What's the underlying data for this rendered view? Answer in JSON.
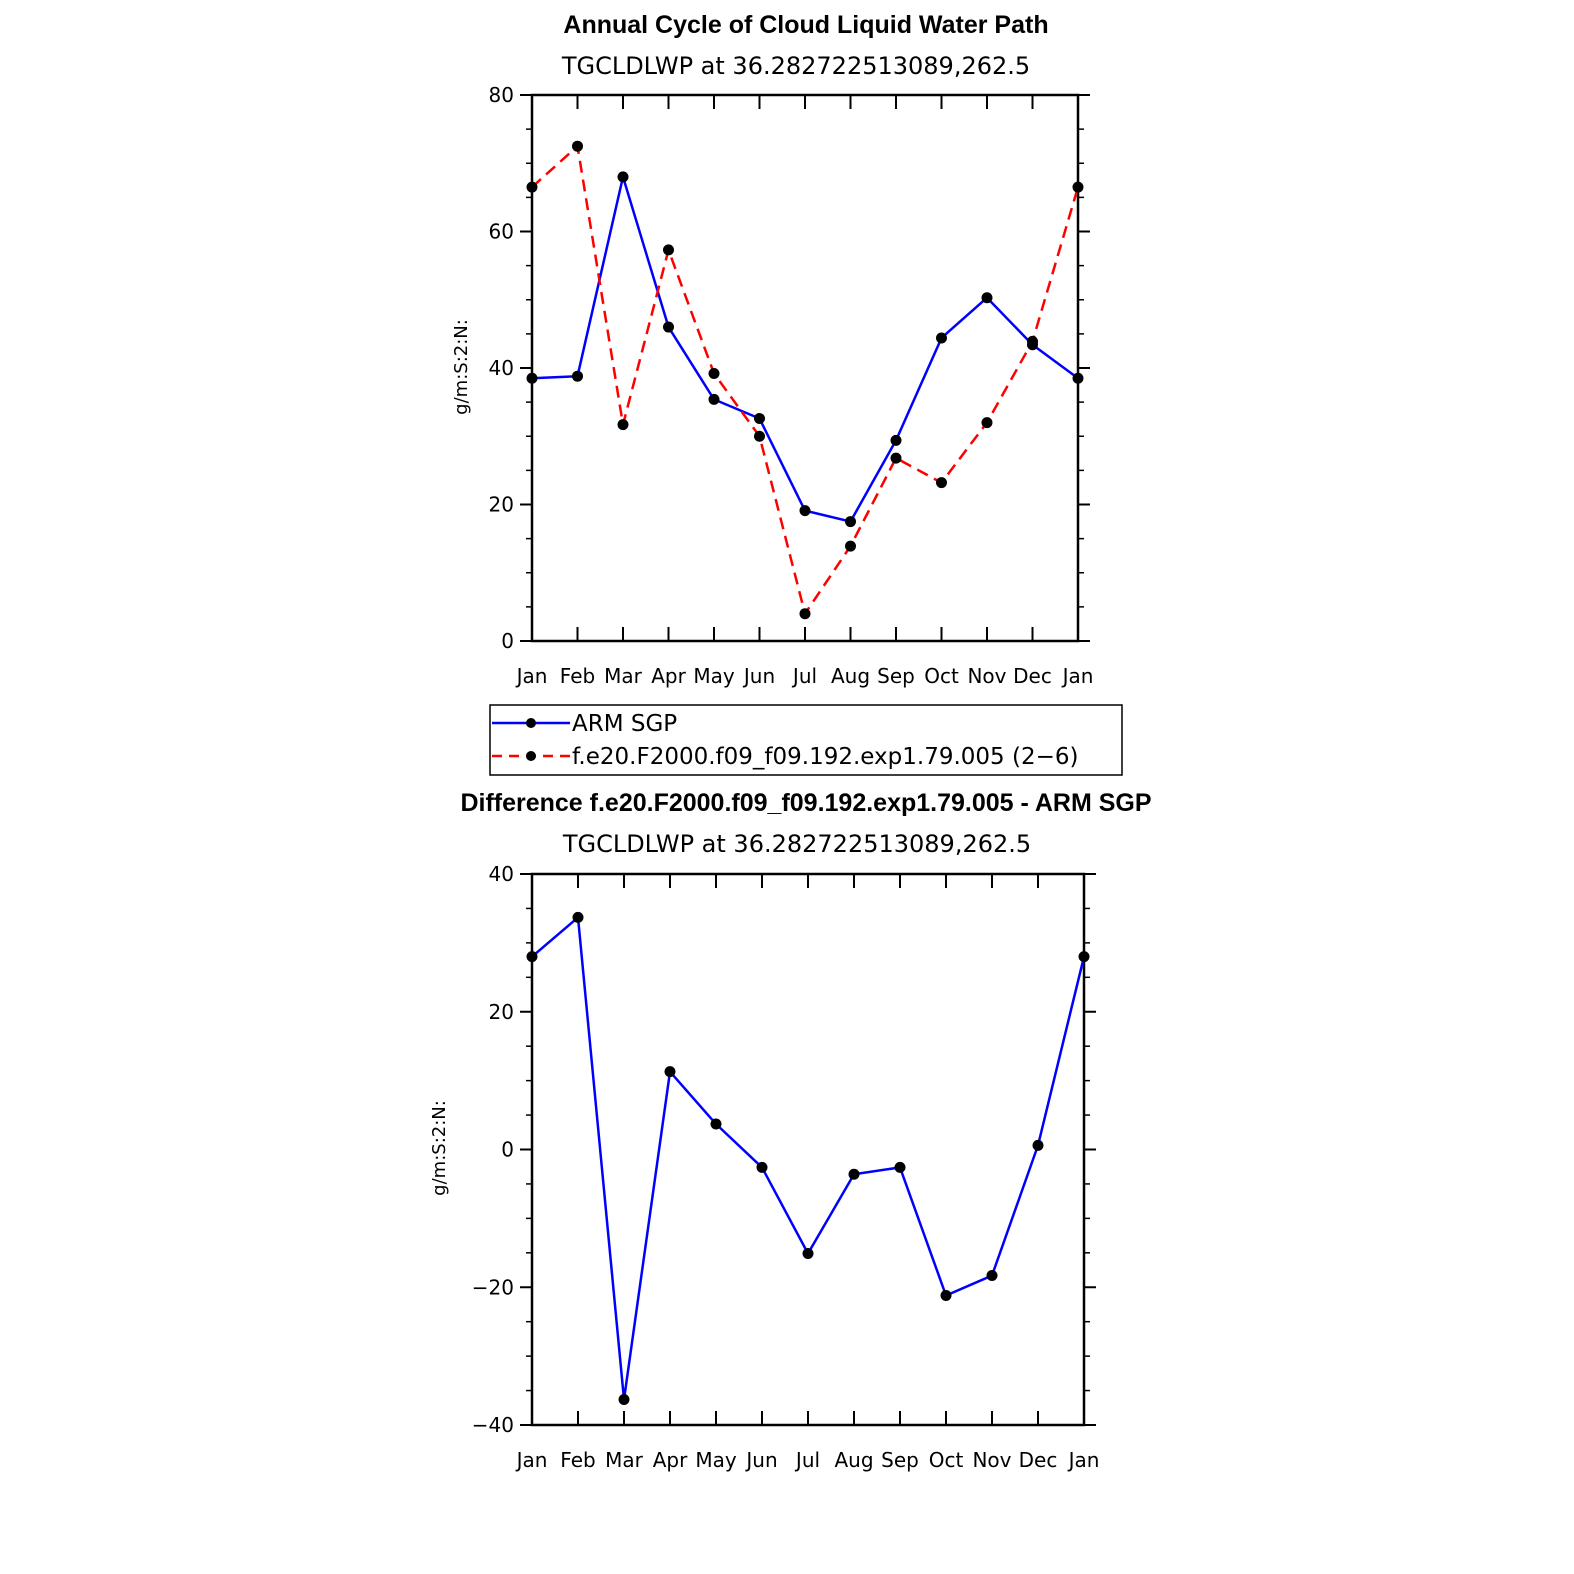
{
  "chart_data": [
    {
      "type": "line",
      "title": "Annual Cycle of Cloud Liquid Water Path",
      "subtitle": "TGCLDLWP  at  36.282722513089,262.5",
      "xlabel": "",
      "ylabel": "g/m:S:2:N:",
      "categories": [
        "Jan",
        "Feb",
        "Mar",
        "Apr",
        "May",
        "Jun",
        "Jul",
        "Aug",
        "Sep",
        "Oct",
        "Nov",
        "Dec",
        "Jan"
      ],
      "ylim": [
        0,
        80
      ],
      "yticks": [
        0,
        20,
        40,
        60,
        80
      ],
      "series": [
        {
          "name": "ARM  SGP",
          "color": "#0000ff",
          "dash": "solid",
          "values": [
            38.5,
            38.8,
            68.0,
            46.0,
            35.4,
            32.6,
            19.1,
            17.5,
            29.4,
            44.4,
            50.3,
            43.4,
            38.5
          ]
        },
        {
          "name": "f.e20.F2000.f09_f09.192.exp1.79.005  (2−6)",
          "color": "#ff0000",
          "dash": "dashed",
          "values": [
            66.5,
            72.5,
            31.7,
            57.3,
            39.2,
            30.0,
            4.0,
            13.9,
            26.8,
            23.2,
            32.0,
            43.9,
            66.5
          ]
        }
      ],
      "legend": "below"
    },
    {
      "type": "line",
      "title": "Difference f.e20.F2000.f09_f09.192.exp1.79.005 - ARM SGP",
      "subtitle": "TGCLDLWP  at  36.282722513089,262.5",
      "xlabel": "",
      "ylabel": "g/m:S:2:N:",
      "categories": [
        "Jan",
        "Feb",
        "Mar",
        "Apr",
        "May",
        "Jun",
        "Jul",
        "Aug",
        "Sep",
        "Oct",
        "Nov",
        "Dec",
        "Jan"
      ],
      "ylim": [
        -40,
        40
      ],
      "yticks": [
        -40,
        -20,
        0,
        20,
        40
      ],
      "ytick_labels": [
        "−40",
        "−20",
        "0",
        "20",
        "40"
      ],
      "series": [
        {
          "color": "#0000ff",
          "dash": "solid",
          "values": [
            28.0,
            33.7,
            -36.3,
            11.3,
            3.7,
            -2.6,
            -15.1,
            -3.6,
            -2.6,
            -21.2,
            -18.3,
            0.6,
            28.0
          ]
        }
      ]
    }
  ]
}
